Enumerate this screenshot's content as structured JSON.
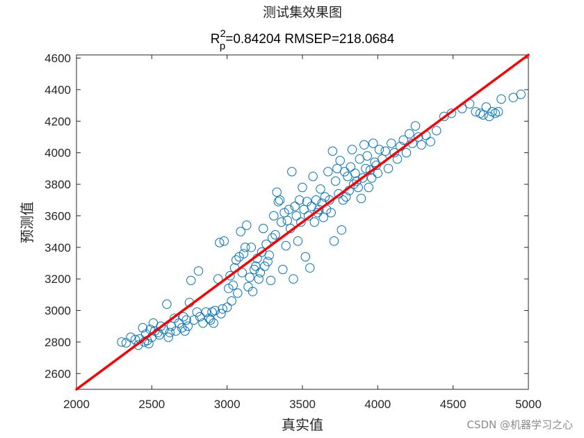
{
  "chart_data": {
    "type": "scatter",
    "title": "测试集效果图",
    "subtitle": {
      "r_label": "R",
      "r_sup": "2",
      "r_sub": "p",
      "rest": "=0.84204  RMSEP=218.0684"
    },
    "xlabel": "真实值",
    "ylabel": "预测值",
    "xlim": [
      2000,
      5000
    ],
    "ylim": [
      2500,
      4620
    ],
    "xticks": [
      "2000",
      "2500",
      "3000",
      "3500",
      "4000",
      "4500",
      "5000"
    ],
    "yticks": [
      "2600",
      "2800",
      "3000",
      "3200",
      "3400",
      "3600",
      "3800",
      "4000",
      "4200",
      "4400",
      "4600"
    ],
    "grid": false,
    "marker_color": "#0072BD",
    "line_color": "#FF0000",
    "reference_line": {
      "x": [
        2000,
        5000
      ],
      "y": [
        2500,
        4620
      ]
    },
    "series": [
      {
        "values": [
          [
            2300,
            2800
          ],
          [
            2330,
            2795
          ],
          [
            2360,
            2830
          ],
          [
            2390,
            2815
          ],
          [
            2410,
            2780
          ],
          [
            2420,
            2820
          ],
          [
            2440,
            2890
          ],
          [
            2450,
            2800
          ],
          [
            2460,
            2850
          ],
          [
            2470,
            2810
          ],
          [
            2480,
            2790
          ],
          [
            2490,
            2880
          ],
          [
            2500,
            2830
          ],
          [
            2510,
            2920
          ],
          [
            2520,
            2870
          ],
          [
            2540,
            2860
          ],
          [
            2550,
            2845
          ],
          [
            2560,
            2900
          ],
          [
            2580,
            2880
          ],
          [
            2600,
            3040
          ],
          [
            2610,
            2830
          ],
          [
            2620,
            2860
          ],
          [
            2630,
            2900
          ],
          [
            2650,
            2950
          ],
          [
            2660,
            2870
          ],
          [
            2680,
            2920
          ],
          [
            2700,
            2890
          ],
          [
            2710,
            2960
          ],
          [
            2720,
            2870
          ],
          [
            2730,
            2940
          ],
          [
            2740,
            2900
          ],
          [
            2750,
            3050
          ],
          [
            2760,
            3190
          ],
          [
            2780,
            2940
          ],
          [
            2800,
            2990
          ],
          [
            2810,
            3250
          ],
          [
            2820,
            2960
          ],
          [
            2840,
            2920
          ],
          [
            2860,
            2990
          ],
          [
            2880,
            2950
          ],
          [
            2890,
            2940
          ],
          [
            2900,
            2990
          ],
          [
            2910,
            2920
          ],
          [
            2920,
            3000
          ],
          [
            2940,
            3200
          ],
          [
            2950,
            3430
          ],
          [
            2960,
            2980
          ],
          [
            2970,
            3010
          ],
          [
            2980,
            3440
          ],
          [
            3000,
            3020
          ],
          [
            3010,
            3140
          ],
          [
            3020,
            3220
          ],
          [
            3030,
            3060
          ],
          [
            3040,
            3160
          ],
          [
            3050,
            3270
          ],
          [
            3060,
            3320
          ],
          [
            3070,
            3110
          ],
          [
            3080,
            3340
          ],
          [
            3090,
            3500
          ],
          [
            3100,
            3240
          ],
          [
            3110,
            3360
          ],
          [
            3120,
            3400
          ],
          [
            3130,
            3540
          ],
          [
            3140,
            3150
          ],
          [
            3150,
            3210
          ],
          [
            3160,
            3400
          ],
          [
            3170,
            3120
          ],
          [
            3180,
            3260
          ],
          [
            3190,
            3280
          ],
          [
            3200,
            3330
          ],
          [
            3210,
            3200
          ],
          [
            3220,
            3240
          ],
          [
            3230,
            3370
          ],
          [
            3240,
            3520
          ],
          [
            3250,
            3280
          ],
          [
            3260,
            3420
          ],
          [
            3270,
            3310
          ],
          [
            3280,
            3350
          ],
          [
            3290,
            3190
          ],
          [
            3300,
            3460
          ],
          [
            3310,
            3600
          ],
          [
            3320,
            3480
          ],
          [
            3330,
            3750
          ],
          [
            3340,
            3690
          ],
          [
            3350,
            3700
          ],
          [
            3360,
            3560
          ],
          [
            3370,
            3260
          ],
          [
            3380,
            3620
          ],
          [
            3390,
            3410
          ],
          [
            3400,
            3570
          ],
          [
            3410,
            3640
          ],
          [
            3420,
            3520
          ],
          [
            3430,
            3880
          ],
          [
            3440,
            3200
          ],
          [
            3450,
            3660
          ],
          [
            3460,
            3600
          ],
          [
            3470,
            3440
          ],
          [
            3480,
            3700
          ],
          [
            3490,
            3560
          ],
          [
            3500,
            3780
          ],
          [
            3510,
            3640
          ],
          [
            3520,
            3340
          ],
          [
            3530,
            3690
          ],
          [
            3540,
            3600
          ],
          [
            3550,
            3270
          ],
          [
            3560,
            3660
          ],
          [
            3570,
            3850
          ],
          [
            3580,
            3560
          ],
          [
            3590,
            3700
          ],
          [
            3600,
            3620
          ],
          [
            3610,
            3640
          ],
          [
            3620,
            3770
          ],
          [
            3630,
            3680
          ],
          [
            3640,
            3590
          ],
          [
            3650,
            3720
          ],
          [
            3660,
            3640
          ],
          [
            3670,
            3880
          ],
          [
            3680,
            3700
          ],
          [
            3690,
            3620
          ],
          [
            3700,
            4010
          ],
          [
            3710,
            3440
          ],
          [
            3720,
            3820
          ],
          [
            3730,
            3900
          ],
          [
            3740,
            3740
          ],
          [
            3750,
            3950
          ],
          [
            3760,
            3510
          ],
          [
            3770,
            3700
          ],
          [
            3780,
            3880
          ],
          [
            3790,
            3720
          ],
          [
            3800,
            3850
          ],
          [
            3810,
            3760
          ],
          [
            3820,
            3910
          ],
          [
            3830,
            4020
          ],
          [
            3840,
            3800
          ],
          [
            3850,
            3870
          ],
          [
            3860,
            3820
          ],
          [
            3870,
            3780
          ],
          [
            3880,
            3960
          ],
          [
            3890,
            3710
          ],
          [
            3900,
            3840
          ],
          [
            3910,
            4050
          ],
          [
            3920,
            3900
          ],
          [
            3930,
            3980
          ],
          [
            3940,
            3780
          ],
          [
            3950,
            3890
          ],
          [
            3960,
            3840
          ],
          [
            3970,
            4060
          ],
          [
            3980,
            3940
          ],
          [
            3990,
            3920
          ],
          [
            4000,
            3870
          ],
          [
            4010,
            4020
          ],
          [
            4030,
            3960
          ],
          [
            4050,
            4010
          ],
          [
            4070,
            3900
          ],
          [
            4090,
            4060
          ],
          [
            4110,
            4000
          ],
          [
            4130,
            3960
          ],
          [
            4150,
            4040
          ],
          [
            4170,
            4080
          ],
          [
            4190,
            4000
          ],
          [
            4210,
            4120
          ],
          [
            4230,
            4060
          ],
          [
            4250,
            4170
          ],
          [
            4270,
            4100
          ],
          [
            4290,
            4050
          ],
          [
            4320,
            4110
          ],
          [
            4350,
            4070
          ],
          [
            4390,
            4140
          ],
          [
            4440,
            4230
          ],
          [
            4490,
            4250
          ],
          [
            4560,
            4280
          ],
          [
            4610,
            4310
          ],
          [
            4650,
            4260
          ],
          [
            4680,
            4250
          ],
          [
            4700,
            4240
          ],
          [
            4720,
            4290
          ],
          [
            4740,
            4230
          ],
          [
            4760,
            4260
          ],
          [
            4780,
            4250
          ],
          [
            4800,
            4260
          ],
          [
            4820,
            4340
          ],
          [
            4900,
            4350
          ],
          [
            4950,
            4370
          ]
        ]
      }
    ]
  },
  "watermark": "CSDN @机器学习之心"
}
